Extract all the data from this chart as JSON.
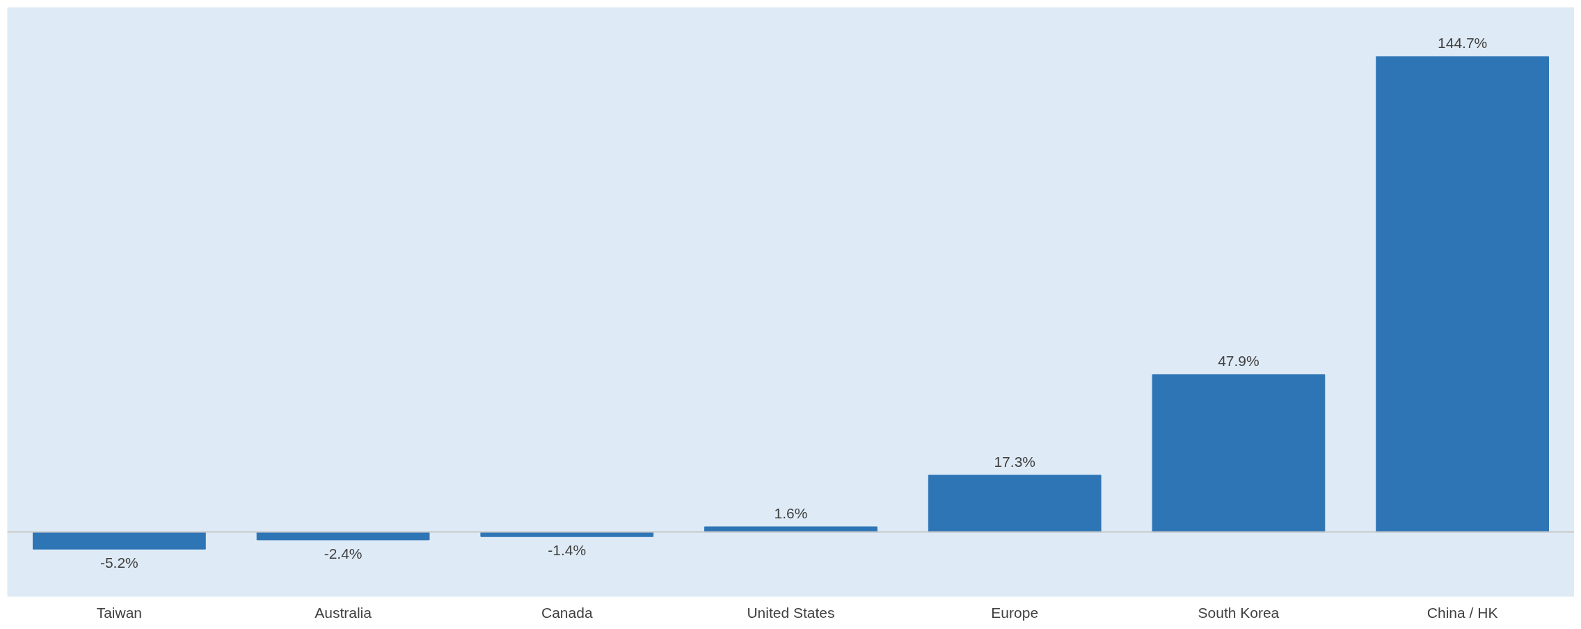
{
  "chart_data": {
    "type": "bar",
    "categories": [
      "Taiwan",
      "Australia",
      "Canada",
      "United States",
      "Europe",
      "South Korea",
      "China / HK"
    ],
    "values": [
      -5.2,
      -2.4,
      -1.4,
      1.6,
      17.3,
      47.9,
      144.7
    ],
    "value_labels": [
      "-5.2%",
      "-2.4%",
      "-1.4%",
      "1.6%",
      "17.3%",
      "47.9%",
      "144.7%"
    ],
    "color": "#2e75b6",
    "grid": false
  }
}
